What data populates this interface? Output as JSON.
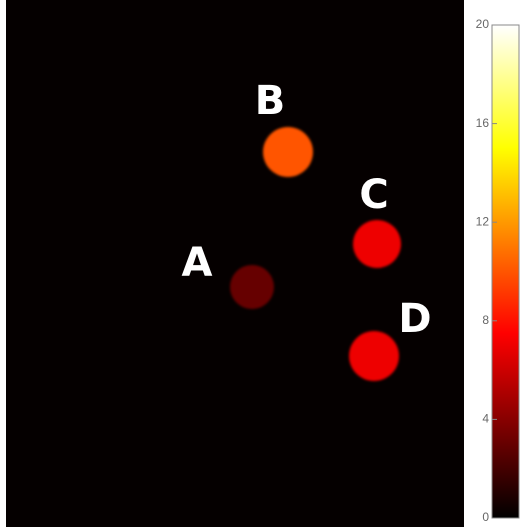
{
  "chart_data": {
    "type": "heatmap",
    "colormap": "hot",
    "labels": [
      "A",
      "B",
      "C",
      "D"
    ],
    "values": [
      3,
      10,
      7,
      7
    ],
    "clim": [
      0,
      20
    ],
    "colorbar_ticks": [
      0,
      4,
      8,
      12,
      16,
      20
    ]
  }
}
